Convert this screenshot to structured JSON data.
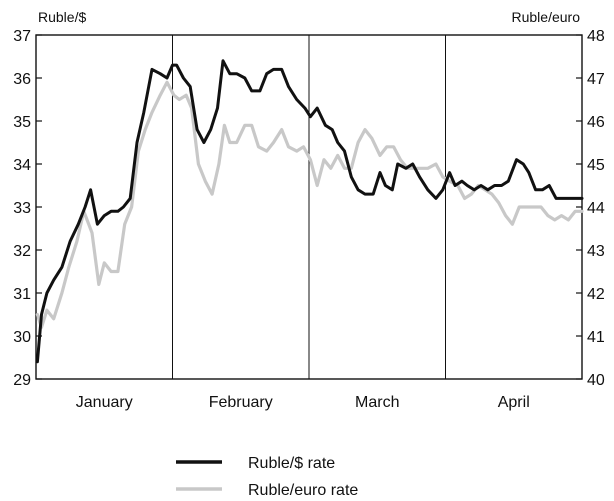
{
  "chart_data": {
    "type": "line",
    "title": "",
    "y_left_label": "Ruble/$",
    "y_right_label": "Ruble/euro",
    "y_left_range": [
      29,
      37
    ],
    "y_right_range": [
      40,
      48
    ],
    "y_left_ticks": [
      29,
      30,
      31,
      32,
      33,
      34,
      35,
      36,
      37
    ],
    "y_right_ticks": [
      40,
      41,
      42,
      43,
      44,
      45,
      46,
      47,
      48
    ],
    "x_range": [
      0,
      4
    ],
    "month_labels": [
      "January",
      "February",
      "March",
      "April"
    ],
    "month_dividers": [
      1,
      2,
      3
    ],
    "grid": false,
    "legend_position": "bottom-center",
    "series": [
      {
        "name": "Ruble/$ rate",
        "axis": "left",
        "color": "#111111",
        "x": [
          0.01,
          0.04,
          0.08,
          0.13,
          0.19,
          0.25,
          0.31,
          0.36,
          0.4,
          0.45,
          0.5,
          0.55,
          0.6,
          0.64,
          0.69,
          0.74,
          0.79,
          0.85,
          0.91,
          0.96,
          1.0,
          1.03,
          1.08,
          1.13,
          1.18,
          1.23,
          1.28,
          1.33,
          1.37,
          1.42,
          1.47,
          1.53,
          1.58,
          1.64,
          1.69,
          1.74,
          1.8,
          1.85,
          1.91,
          1.97,
          2.01,
          2.06,
          2.12,
          2.17,
          2.21,
          2.26,
          2.31,
          2.36,
          2.41,
          2.47,
          2.52,
          2.56,
          2.61,
          2.65,
          2.71,
          2.76,
          2.81,
          2.87,
          2.93,
          2.98,
          3.03,
          3.07,
          3.12,
          3.16,
          3.21,
          3.26,
          3.31,
          3.36,
          3.41,
          3.46,
          3.52,
          3.57,
          3.61,
          3.66,
          3.71,
          3.76,
          3.81,
          3.85,
          3.91,
          3.96,
          4.0
        ],
        "values": [
          29.4,
          30.5,
          31.0,
          31.3,
          31.6,
          32.2,
          32.6,
          33.0,
          33.4,
          32.6,
          32.8,
          32.9,
          32.9,
          33.0,
          33.2,
          34.5,
          35.2,
          36.2,
          36.1,
          36.0,
          36.3,
          36.3,
          36.0,
          35.8,
          34.8,
          34.5,
          34.8,
          35.3,
          36.4,
          36.1,
          36.1,
          36.0,
          35.7,
          35.7,
          36.1,
          36.2,
          36.2,
          35.8,
          35.5,
          35.3,
          35.1,
          35.3,
          34.9,
          34.8,
          34.5,
          34.3,
          33.7,
          33.4,
          33.3,
          33.3,
          33.8,
          33.5,
          33.4,
          34.0,
          33.9,
          34.0,
          33.7,
          33.4,
          33.2,
          33.4,
          33.8,
          33.5,
          33.6,
          33.5,
          33.4,
          33.5,
          33.4,
          33.5,
          33.5,
          33.6,
          34.1,
          34.0,
          33.8,
          33.4,
          33.4,
          33.5,
          33.2,
          33.2,
          33.2,
          33.2,
          33.2
        ]
      },
      {
        "name": "Ruble/euro rate",
        "axis": "right",
        "color": "#c8c8c8",
        "x": [
          0.01,
          0.04,
          0.08,
          0.13,
          0.19,
          0.24,
          0.3,
          0.35,
          0.41,
          0.46,
          0.5,
          0.55,
          0.6,
          0.65,
          0.7,
          0.75,
          0.8,
          0.85,
          0.91,
          0.96,
          1.01,
          1.05,
          1.1,
          1.14,
          1.19,
          1.24,
          1.29,
          1.34,
          1.38,
          1.42,
          1.47,
          1.53,
          1.58,
          1.63,
          1.69,
          1.74,
          1.8,
          1.85,
          1.91,
          1.96,
          2.01,
          2.06,
          2.11,
          2.16,
          2.21,
          2.26,
          2.31,
          2.36,
          2.41,
          2.46,
          2.52,
          2.57,
          2.62,
          2.67,
          2.72,
          2.77,
          2.82,
          2.87,
          2.93,
          2.98,
          3.03,
          3.09,
          3.14,
          3.19,
          3.24,
          3.29,
          3.34,
          3.39,
          3.44,
          3.49,
          3.54,
          3.59,
          3.65,
          3.7,
          3.75,
          3.8,
          3.85,
          3.9,
          3.95,
          4.0
        ],
        "values": [
          41.5,
          41.2,
          41.6,
          41.4,
          42.0,
          42.6,
          43.2,
          43.9,
          43.4,
          42.2,
          42.7,
          42.5,
          42.5,
          43.6,
          44.0,
          45.3,
          45.8,
          46.2,
          46.6,
          46.9,
          46.6,
          46.5,
          46.6,
          46.3,
          45.0,
          44.6,
          44.3,
          45.0,
          45.9,
          45.5,
          45.5,
          45.9,
          45.9,
          45.4,
          45.3,
          45.5,
          45.8,
          45.4,
          45.3,
          45.4,
          45.1,
          44.5,
          45.1,
          44.9,
          45.2,
          44.9,
          44.9,
          45.5,
          45.8,
          45.6,
          45.2,
          45.4,
          45.4,
          45.1,
          44.9,
          44.9,
          44.9,
          44.9,
          45.0,
          44.7,
          44.6,
          44.5,
          44.2,
          44.3,
          44.5,
          44.4,
          44.3,
          44.1,
          43.8,
          43.6,
          44.0,
          44.0,
          44.0,
          44.0,
          43.8,
          43.7,
          43.8,
          43.7,
          43.9,
          43.9
        ]
      }
    ]
  }
}
